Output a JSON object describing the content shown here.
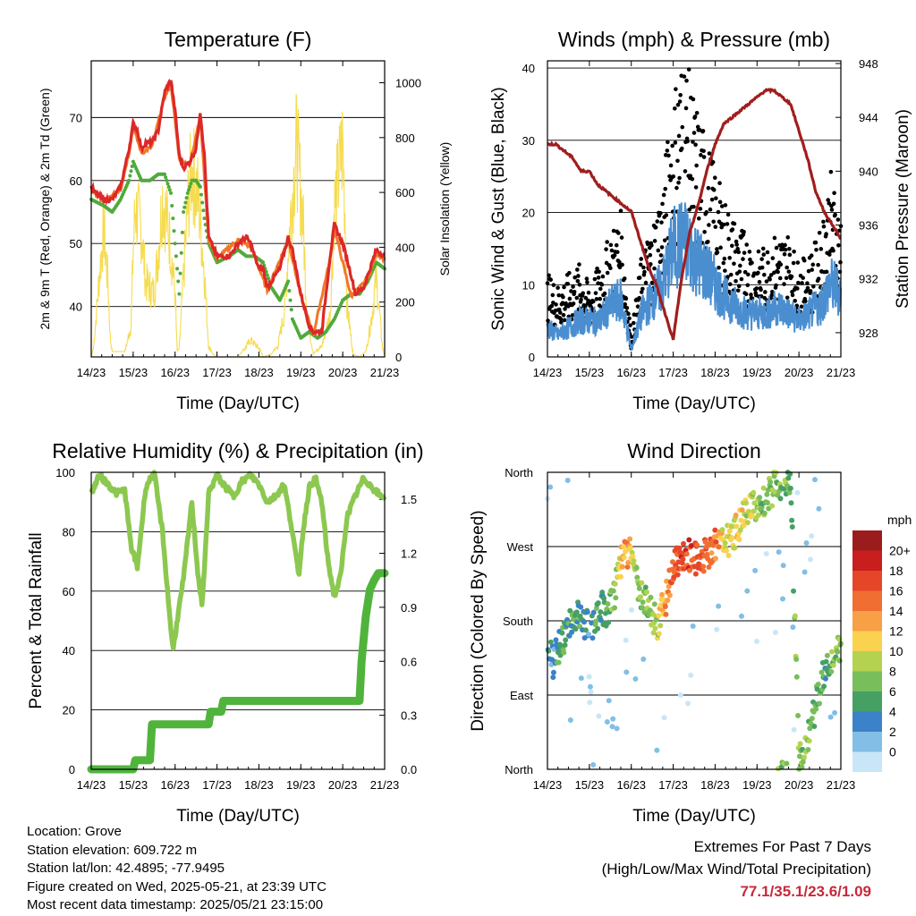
{
  "chart_data": [
    {
      "type": "line",
      "title": "Temperature (F)",
      "xlabel": "Time (Day/UTC)",
      "ylabel": "2m & 9m T (Red, Orange) & 2m Td (Green)",
      "y2label": "Solar Insolation (Yellow)",
      "x_ticks": [
        "14/23",
        "15/23",
        "16/23",
        "17/23",
        "18/23",
        "19/23",
        "20/23",
        "21/23"
      ],
      "ylim": [
        32,
        79
      ],
      "y_ticks": [
        40,
        50,
        60,
        70
      ],
      "y2lim": [
        0,
        1080
      ],
      "y2_ticks": [
        0,
        200,
        400,
        600,
        800,
        1000
      ],
      "series": [
        {
          "color": "#dc2828",
          "x": [
            0,
            0.1,
            0.3,
            0.5,
            0.7,
            0.9,
            1.0,
            1.1,
            1.2,
            1.3,
            1.45,
            1.6,
            1.75,
            1.9,
            2.0,
            2.1,
            2.2,
            2.35,
            2.5,
            2.6,
            2.7,
            2.8,
            3.0,
            3.3,
            3.5,
            3.7,
            3.8,
            4.0,
            4.1,
            4.2,
            4.5,
            4.7,
            4.8,
            5.0,
            5.2,
            5.3,
            5.5,
            5.7,
            5.8,
            6.0,
            6.2,
            6.3,
            6.5,
            6.6,
            6.8,
            7.0
          ],
          "y": [
            59,
            58,
            57,
            57,
            59,
            65,
            69,
            68,
            65,
            66,
            66,
            68,
            74,
            76,
            71,
            64,
            62,
            63,
            65,
            71,
            64,
            51,
            48,
            48,
            50,
            51,
            50,
            46,
            46,
            43,
            46,
            51,
            49,
            42,
            37,
            36,
            36,
            48,
            53,
            50,
            45,
            42,
            43,
            45,
            49,
            48
          ]
        },
        {
          "color": "#f07828",
          "x": [
            0,
            0.3,
            0.7,
            0.9,
            1.0,
            1.2,
            1.45,
            1.75,
            1.9,
            2.1,
            2.35,
            2.6,
            2.8,
            3.0,
            3.5,
            3.8,
            4.2,
            4.7,
            5.0,
            5.3,
            5.7,
            5.8,
            6.2,
            6.6,
            6.8,
            7.0
          ],
          "y": [
            58.6,
            56.6,
            58.6,
            64.4,
            68.4,
            64.4,
            65.4,
            73.2,
            75.4,
            63.4,
            62.4,
            70.4,
            50.6,
            47.6,
            50.6,
            49.6,
            42.6,
            50.6,
            41.6,
            35.6,
            47.6,
            52.4,
            41.6,
            44.4,
            48.4,
            47.6
          ]
        },
        {
          "color": "#50aa3c",
          "x": [
            0,
            0.3,
            0.5,
            0.7,
            0.9,
            1.0,
            1.2,
            1.4,
            1.6,
            1.75,
            1.9,
            2.0,
            2.1,
            2.2,
            2.3,
            2.4,
            2.5,
            2.6,
            2.7,
            2.8,
            3.0,
            3.3,
            3.5,
            3.7,
            3.9,
            4.1,
            4.3,
            4.5,
            4.7,
            4.8,
            5.0,
            5.2,
            5.4,
            5.6,
            5.8,
            6.0,
            6.2,
            6.4,
            6.6,
            6.8,
            7.0
          ],
          "y": [
            57,
            56,
            55,
            57,
            60,
            63,
            60,
            60,
            61,
            61,
            58,
            50,
            42,
            55,
            58,
            60,
            60,
            59,
            54,
            50,
            47,
            48,
            49,
            48,
            48,
            47,
            43,
            41,
            44,
            38,
            35,
            36,
            35,
            36,
            38,
            41,
            42,
            42,
            44,
            47,
            46
          ]
        },
        {
          "color": "#f5dc50",
          "type": "area",
          "axis": "right",
          "x": [
            0,
            0.05,
            0.1,
            0.2,
            0.3,
            0.4,
            0.45,
            0.5,
            0.65,
            0.8,
            0.95,
            1.0,
            1.05,
            1.2,
            1.3,
            1.5,
            1.6,
            1.7,
            1.85,
            2.0,
            2.05,
            2.1,
            2.3,
            2.4,
            2.55,
            2.7,
            2.8,
            2.9,
            3.0,
            3.2,
            3.5,
            3.6,
            3.8,
            4.0,
            4.1,
            4.3,
            4.45,
            4.6,
            4.75,
            4.9,
            5.05,
            5.15,
            5.3,
            5.5,
            5.7,
            5.8,
            6.0,
            6.05,
            6.1,
            6.25,
            6.4,
            6.55,
            6.7,
            6.8,
            6.95,
            7.0
          ],
          "y": [
            0,
            30,
            150,
            400,
            600,
            350,
            100,
            20,
            20,
            20,
            150,
            500,
            700,
            600,
            350,
            300,
            500,
            750,
            600,
            300,
            20,
            40,
            700,
            900,
            750,
            400,
            50,
            10,
            0,
            0,
            0,
            20,
            80,
            40,
            0,
            10,
            50,
            200,
            650,
            1000,
            650,
            200,
            10,
            50,
            200,
            700,
            1000,
            700,
            250,
            10,
            0,
            20,
            200,
            380,
            40,
            0
          ]
        }
      ]
    },
    {
      "type": "line",
      "title": "Winds (mph) & Pressure (mb)",
      "xlabel": "Time (Day/UTC)",
      "ylabel": "Sonic Wind & Gust (Blue, Black)",
      "y2label": "Station Pressure (Maroon)",
      "x_ticks": [
        "14/23",
        "15/23",
        "16/23",
        "17/23",
        "18/23",
        "19/23",
        "20/23",
        "21/23"
      ],
      "ylim": [
        0,
        41
      ],
      "y_ticks": [
        0,
        10,
        20,
        30,
        40
      ],
      "y2lim": [
        926.2,
        948.2
      ],
      "y2_ticks": [
        928,
        932,
        936,
        940,
        944,
        948
      ],
      "series": [
        {
          "name_hidden": "gust",
          "color": "#000000",
          "type": "scatter",
          "x": [
            0,
            0.25,
            0.5,
            0.75,
            1.0,
            1.25,
            1.5,
            1.75,
            2.0,
            2.25,
            2.5,
            2.75,
            3.0,
            3.25,
            3.5,
            3.75,
            4.0,
            4.25,
            4.5,
            4.75,
            5.0,
            5.25,
            5.5,
            5.75,
            6.0,
            6.25,
            6.5,
            6.75,
            7.0
          ],
          "y": [
            8,
            7,
            8,
            9,
            7,
            9,
            12,
            14,
            2,
            10,
            13,
            17,
            26,
            30,
            25,
            22,
            18,
            15,
            13,
            12,
            10,
            11,
            12,
            12,
            9,
            10,
            12,
            18,
            14
          ]
        },
        {
          "name_hidden": "wind",
          "color": "#4a8ed0",
          "x": [
            0,
            0.25,
            0.5,
            0.75,
            1.0,
            1.25,
            1.5,
            1.75,
            2.0,
            2.25,
            2.5,
            2.75,
            3.0,
            3.25,
            3.5,
            3.75,
            4.0,
            4.25,
            4.5,
            4.75,
            5.0,
            5.25,
            5.5,
            5.75,
            6.0,
            6.25,
            6.5,
            6.75,
            7.0
          ],
          "y": [
            4,
            3,
            4,
            5,
            5,
            5,
            7,
            8,
            1,
            6,
            8,
            10,
            15,
            16,
            14,
            12,
            10,
            8,
            7,
            6,
            6,
            6,
            7,
            6,
            5,
            6,
            7,
            10,
            9
          ]
        },
        {
          "color": "#a01e1e",
          "axis": "right",
          "x": [
            0,
            0.2,
            0.4,
            0.6,
            0.8,
            1.0,
            1.2,
            1.4,
            1.6,
            1.8,
            2.0,
            2.2,
            2.4,
            2.6,
            2.8,
            3.0,
            3.2,
            3.4,
            3.6,
            3.8,
            4.0,
            4.2,
            4.4,
            4.6,
            4.8,
            5.0,
            5.2,
            5.4,
            5.6,
            5.8,
            6.0,
            6.2,
            6.4,
            6.6,
            6.8,
            7.0
          ],
          "y": [
            942,
            942,
            941.5,
            941,
            940,
            940,
            939,
            938.5,
            938,
            937.5,
            937,
            935,
            933,
            931.5,
            929.5,
            927.5,
            932,
            935.5,
            937.5,
            940,
            942,
            943.5,
            944,
            944.5,
            945,
            945.5,
            946,
            946,
            945.5,
            945,
            943,
            941,
            938.5,
            937,
            936,
            935
          ]
        }
      ]
    },
    {
      "type": "line",
      "title": "Relative Humidity (%) & Precipitation (in)",
      "xlabel": "Time (Day/UTC)",
      "ylabel": "Percent & Total Rainfall",
      "x_ticks": [
        "14/23",
        "15/23",
        "16/23",
        "17/23",
        "18/23",
        "19/23",
        "20/23",
        "21/23"
      ],
      "ylim": [
        0,
        100
      ],
      "y_ticks": [
        0,
        20,
        40,
        60,
        80,
        100
      ],
      "y2lim": [
        0,
        1.65
      ],
      "y2_ticks": [
        "0.0",
        "0.3",
        "0.6",
        "0.9",
        "1.2",
        "1.5"
      ],
      "series": [
        {
          "color": "#8cc850",
          "x": [
            0,
            0.2,
            0.4,
            0.6,
            0.8,
            0.95,
            1.1,
            1.3,
            1.5,
            1.7,
            1.85,
            1.95,
            2.05,
            2.2,
            2.4,
            2.55,
            2.65,
            2.8,
            3.0,
            3.2,
            3.4,
            3.6,
            3.8,
            4.0,
            4.2,
            4.4,
            4.6,
            4.8,
            4.95,
            5.05,
            5.2,
            5.35,
            5.5,
            5.65,
            5.8,
            5.95,
            6.1,
            6.3,
            6.5,
            6.7,
            6.9,
            7.0
          ],
          "y": [
            93,
            99,
            96,
            93,
            94,
            75,
            68,
            95,
            100,
            80,
            55,
            40,
            50,
            64,
            90,
            65,
            55,
            93,
            99,
            95,
            92,
            97,
            99,
            96,
            90,
            92,
            96,
            80,
            65,
            80,
            95,
            98,
            90,
            70,
            58,
            65,
            85,
            92,
            98,
            95,
            92,
            92
          ]
        },
        {
          "color": "#50b43c",
          "axis": "right",
          "x": [
            0,
            1.0,
            1.05,
            1.4,
            1.45,
            2.8,
            2.85,
            3.1,
            3.15,
            6.4,
            6.45,
            6.55,
            6.65,
            6.75,
            6.85,
            7.0
          ],
          "y": [
            0,
            0,
            0.05,
            0.05,
            0.25,
            0.25,
            0.32,
            0.32,
            0.38,
            0.38,
            0.6,
            0.85,
            1.0,
            1.05,
            1.09,
            1.09
          ]
        }
      ]
    },
    {
      "type": "scatter",
      "title": "Wind Direction",
      "xlabel": "Time (Day/UTC)",
      "ylabel": "Direction (Colored By Speed)",
      "x_ticks": [
        "14/23",
        "15/23",
        "16/23",
        "17/23",
        "18/23",
        "19/23",
        "20/23",
        "21/23"
      ],
      "ylim": [
        0,
        360
      ],
      "y_ticks": [
        "North",
        "East",
        "South",
        "West",
        "North"
      ],
      "legend": {
        "title": "mph",
        "labels": [
          "20+",
          "18",
          "16",
          "14",
          "12",
          "10",
          "8",
          "6",
          "4",
          "2",
          "0"
        ],
        "colors": [
          "#9b1c1c",
          "#c81e1e",
          "#e64628",
          "#f06e32",
          "#f8a046",
          "#fad250",
          "#b4d250",
          "#78be5a",
          "#46a064",
          "#3c82c8",
          "#82bee6",
          "#c8e6f8"
        ]
      },
      "series": [
        {
          "x": [
            0,
            0.15,
            0.3,
            0.5,
            0.7,
            0.9,
            1.0,
            1.1,
            1.2,
            1.3,
            1.4,
            1.5,
            1.6,
            1.75,
            1.9,
            2.0,
            2.2,
            2.4,
            2.6,
            2.8,
            3.0,
            3.2,
            3.4,
            3.6,
            3.8,
            4.0,
            4.2,
            4.4,
            4.6,
            4.8,
            5.0,
            5.2,
            5.4,
            5.6,
            5.8,
            6.0,
            6.2,
            6.4,
            6.6,
            6.8,
            7.0
          ],
          "y": [
            140,
            130,
            150,
            170,
            185,
            175,
            180,
            170,
            190,
            200,
            180,
            200,
            215,
            250,
            260,
            265,
            215,
            200,
            175,
            200,
            250,
            255,
            260,
            255,
            260,
            270,
            275,
            280,
            300,
            315,
            320,
            330,
            340,
            350,
            355,
            10,
            30,
            80,
            120,
            140,
            150
          ],
          "speed": [
            4,
            4,
            6,
            6,
            6,
            5,
            4,
            6,
            7,
            6,
            6,
            8,
            9,
            13,
            15,
            12,
            8,
            8,
            10,
            14,
            17,
            18,
            18,
            17,
            17,
            16,
            12,
            11,
            12,
            10,
            9,
            8,
            9,
            8,
            7,
            9,
            8,
            7,
            6,
            8,
            9
          ]
        }
      ]
    }
  ],
  "info": {
    "location": "Location: Grove",
    "elevation": "Station elevation: 609.722 m",
    "latlon": "Station lat/lon: 42.4895; -77.9495",
    "created": "Figure created on Wed, 2025-05-21, at 23:39 UTC",
    "latest": "Most recent data timestamp: 2025/05/21 23:15:00"
  },
  "extremes": {
    "line1": "Extremes For Past 7 Days",
    "line2": "(High/Low/Max Wind/Total Precipitation)",
    "values": "77.1/35.1/23.6/1.09",
    "value_color": "#c8283c"
  }
}
